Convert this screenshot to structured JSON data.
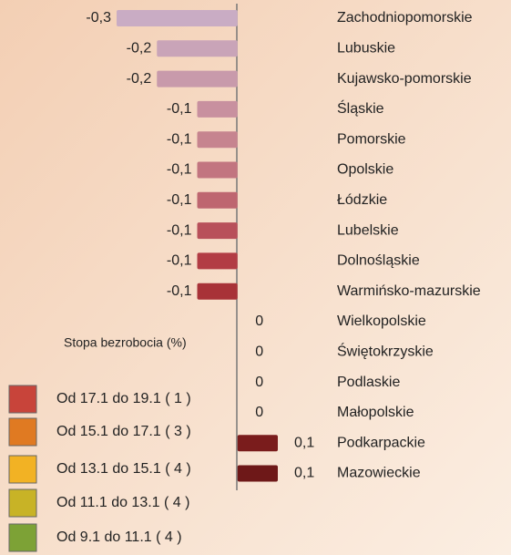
{
  "chart_data": {
    "type": "hbar",
    "categories": [
      "Zachodniopomorskie",
      "Lubuskie",
      "Kujawsko-pomorskie",
      "Śląskie",
      "Pomorskie",
      "Opolskie",
      "Łódzkie",
      "Lubelskie",
      "Dolnośląskie",
      "Warmińsko-mazurskie",
      "Wielkopolskie",
      "Świętokrzyskie",
      "Podlaskie",
      "Małopolskie",
      "Podkarpackie",
      "Mazowieckie"
    ],
    "values": [
      -0.3,
      -0.2,
      -0.2,
      -0.1,
      -0.1,
      -0.1,
      -0.1,
      -0.1,
      -0.1,
      -0.1,
      0,
      0,
      0,
      0,
      0.1,
      0.1
    ],
    "value_labels": [
      "-0,3",
      "-0,2",
      "-0,2",
      "-0,1",
      "-0,1",
      "-0,1",
      "-0,1",
      "-0,1",
      "-0,1",
      "-0,1",
      "0",
      "0",
      "0",
      "0",
      "0,1",
      "0,1"
    ],
    "colors": [
      "#c9acc4",
      "#c9a4b8",
      "#c89aab",
      "#c8909f",
      "#c6848f",
      "#c27580",
      "#be6670",
      "#b8505a",
      "#b23c44",
      "#a83238",
      "#9a2a2a",
      "#922828",
      "#8a2424",
      "#832020",
      "#7a1c1c",
      "#6e1818"
    ],
    "xlim": [
      -0.3,
      0.1
    ],
    "legend": {
      "title": "Stopa bezrobocia (%)",
      "items": [
        {
          "label": "Od 17.1 do 19.1 ( 1 )",
          "color": "#c8443a"
        },
        {
          "label": "Od 15.1 do 17.1 ( 3 )",
          "color": "#e07a22"
        },
        {
          "label": "Od 13.1 do 15.1 ( 4 )",
          "color": "#f2b224"
        },
        {
          "label": "Od 11.1 do 13.1 ( 4 )",
          "color": "#c8b326"
        },
        {
          "label": "Od 9.1 do 11.1 ( 4 )",
          "color": "#7da236"
        }
      ]
    }
  }
}
